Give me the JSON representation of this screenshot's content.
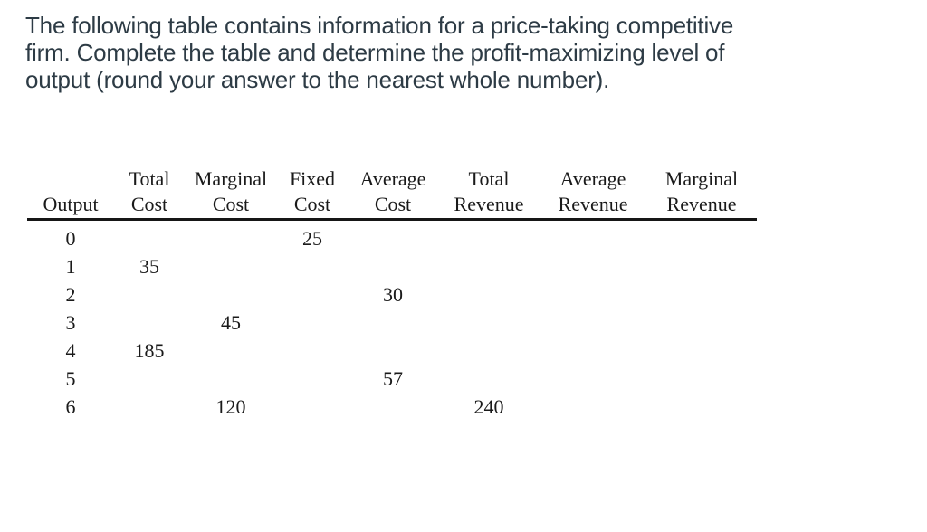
{
  "colors": {
    "background": "#ffffff",
    "question_text": "#2d3b45",
    "table_text": "#1a1a1a",
    "header_rule": "#161616"
  },
  "question": {
    "text": "The following table contains information for a price-taking competitive firm. Complete the table and determine the profit-maximizing level of output (round your answer to the nearest whole number).",
    "lines": [
      "The following table contains information for a price-taking competitive",
      "firm. Complete the table and determine the profit-maximizing level of",
      "output (round your answer to the nearest whole number)."
    ]
  },
  "table": {
    "headers": [
      {
        "top": "",
        "bottom": "Output"
      },
      {
        "top": "Total",
        "bottom": "Cost"
      },
      {
        "top": "Marginal",
        "bottom": "Cost"
      },
      {
        "top": "Fixed",
        "bottom": "Cost"
      },
      {
        "top": "Average",
        "bottom": "Cost"
      },
      {
        "top": "Total",
        "bottom": "Revenue"
      },
      {
        "top": "Average",
        "bottom": "Revenue"
      },
      {
        "top": "Marginal",
        "bottom": "Revenue"
      }
    ],
    "rows": [
      [
        "0",
        "",
        "",
        "25",
        "",
        "",
        "",
        ""
      ],
      [
        "1",
        "35",
        "",
        "",
        "",
        "",
        "",
        ""
      ],
      [
        "2",
        "",
        "",
        "",
        "30",
        "",
        "",
        ""
      ],
      [
        "3",
        "",
        "45",
        "",
        "",
        "",
        "",
        ""
      ],
      [
        "4",
        "185",
        "",
        "",
        "",
        "",
        "",
        ""
      ],
      [
        "5",
        "",
        "",
        "",
        "57",
        "",
        "",
        ""
      ],
      [
        "6",
        "",
        "120",
        "",
        "",
        "240",
        "",
        ""
      ]
    ]
  }
}
